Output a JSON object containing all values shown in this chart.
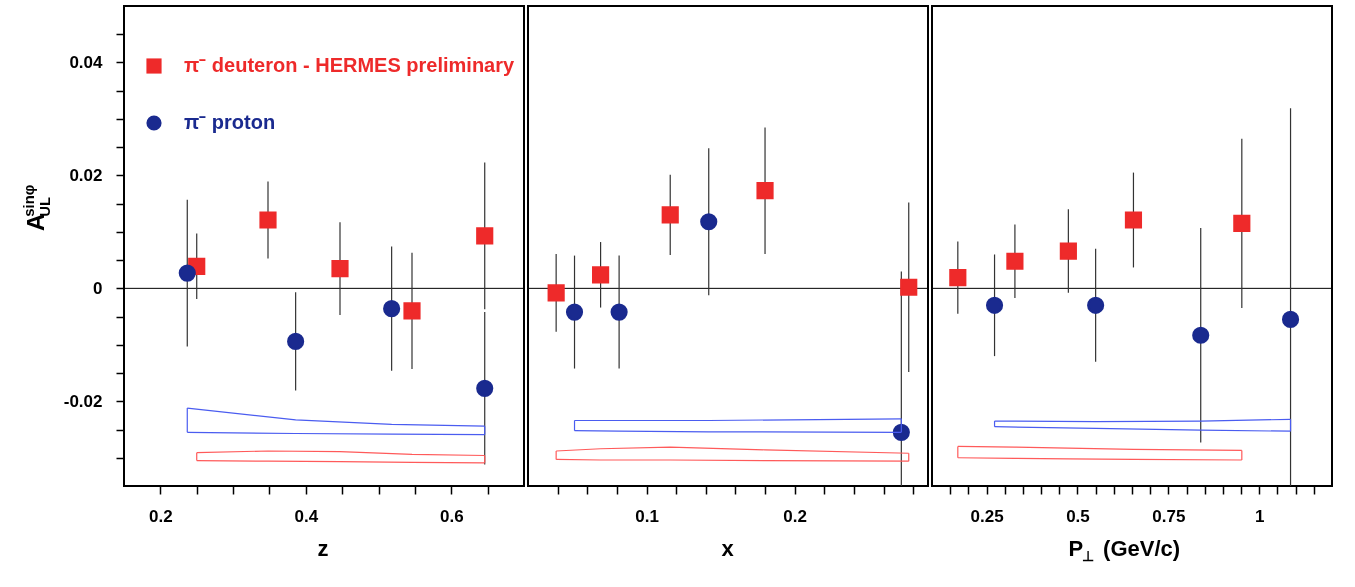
{
  "chart_data": [
    {
      "type": "scatter",
      "xlabel": "z",
      "ylabel": "A$^{sinφ}$$_{UL}$",
      "legend": "top left",
      "xlim": [
        0.15,
        0.7
      ],
      "ylim": [
        -0.035,
        0.05
      ],
      "xticks": [
        0.2,
        {
          "value": 0.25,
          "label": null
        },
        {
          "value": 0.3,
          "label": null
        },
        {
          "value": 0.35,
          "label": null
        },
        0.4,
        {
          "value": 0.45,
          "label": null
        },
        {
          "value": 0.5,
          "label": null
        },
        {
          "value": 0.55,
          "label": null
        },
        0.6,
        {
          "value": 0.65,
          "label": null
        }
      ],
      "yticks": [
        {
          "value": -0.03,
          "label": null
        },
        {
          "value": -0.025,
          "label": null
        },
        -0.02,
        {
          "value": -0.015,
          "label": null
        },
        {
          "value": -0.01,
          "label": null
        },
        {
          "value": -0.005,
          "label": null
        },
        0,
        {
          "value": 0.005,
          "label": null
        },
        {
          "value": 0.01,
          "label": null
        },
        {
          "value": 0.015,
          "label": null
        },
        0.02,
        {
          "value": 0.025,
          "label": null
        },
        {
          "value": 0.03,
          "label": null
        },
        {
          "value": 0.035,
          "label": null
        },
        0.04,
        {
          "value": 0.045,
          "label": null
        }
      ],
      "ref_lines": [
        {
          "axis": "y",
          "value": 0
        }
      ],
      "series": [
        {
          "name": "π⁻ deuteron - HERMES preliminary",
          "marker": "square",
          "color": "#ee2a2a",
          "x": [
            0.25,
            0.348,
            0.447,
            0.546,
            0.646
          ],
          "values": [
            0.0039,
            0.0121,
            0.0035,
            -0.004,
            0.0093
          ],
          "errors": [
            0.0058,
            0.0068,
            0.0082,
            0.0103,
            0.013
          ]
        },
        {
          "name": "π⁻ proton",
          "marker": "circle",
          "color": "#1a2a8f",
          "x": [
            0.237,
            0.386,
            0.518,
            0.646
          ],
          "values": [
            0.0027,
            -0.0094,
            -0.0036,
            -0.0177
          ],
          "errors": [
            0.013,
            0.0087,
            0.011,
            0.0135
          ]
        },
        {
          "type": "line",
          "color": "#4a5cf0",
          "x": [
            0.237,
            0.386,
            0.518,
            0.646
          ],
          "values": [
            -0.0212,
            -0.0233,
            -0.0241,
            -0.0244
          ],
          "errors": [
            [
              -0.0255,
              -0.0212
            ],
            null,
            null,
            [
              -0.0259,
              -0.0244
            ]
          ]
        },
        {
          "type": "line",
          "color": "#4a5cf0",
          "x": [
            0.237,
            0.386,
            0.518,
            0.646
          ],
          "values": [
            -0.0255,
            -0.0257,
            -0.0258,
            -0.0259
          ]
        },
        {
          "type": "line",
          "color": "#ff5a5a",
          "x": [
            0.25,
            0.348,
            0.447,
            0.546,
            0.646
          ],
          "values": [
            -0.0291,
            -0.0288,
            -0.0289,
            -0.0294,
            -0.0296
          ],
          "errors": [
            [
              -0.0305,
              -0.0291
            ],
            null,
            null,
            null,
            [
              -0.0309,
              -0.0296
            ]
          ]
        },
        {
          "type": "line",
          "color": "#ff5a5a",
          "x": [
            0.25,
            0.348,
            0.447,
            0.546,
            0.646
          ],
          "values": [
            -0.0305,
            -0.0306,
            -0.0307,
            -0.0308,
            -0.0309
          ]
        }
      ]
    },
    {
      "type": "scatter",
      "xlabel": "x",
      "tick_labels": "x",
      "xlim": [
        0.02,
        0.29
      ],
      "ylim": [
        -0.035,
        0.05
      ],
      "xticks": [
        {
          "value": 0.04,
          "label": null
        },
        {
          "value": 0.06,
          "label": null
        },
        {
          "value": 0.08,
          "label": null
        },
        0.1,
        {
          "value": 0.12,
          "label": null
        },
        {
          "value": 0.14,
          "label": null
        },
        {
          "value": 0.16,
          "label": null
        },
        {
          "value": 0.18,
          "label": null
        },
        0.2,
        {
          "value": 0.22,
          "label": null
        },
        {
          "value": 0.24,
          "label": null
        },
        {
          "value": 0.26,
          "label": null
        },
        {
          "value": 0.28,
          "label": null
        }
      ],
      "ref_lines": [
        {
          "axis": "y",
          "value": 0
        }
      ],
      "series": [
        {
          "marker": "square",
          "color": "#ee2a2a",
          "x": [
            0.039,
            0.069,
            0.116,
            0.18,
            0.277
          ],
          "values": [
            -0.0008,
            0.0024,
            0.013,
            0.0173,
            0.0002
          ],
          "errors": [
            0.0069,
            0.0058,
            0.0071,
            0.0112,
            0.015
          ]
        },
        {
          "marker": "circle",
          "color": "#1a2a8f",
          "x": [
            0.0514,
            0.0815,
            0.142,
            0.272
          ],
          "values": [
            -0.0042,
            -0.0042,
            0.0118,
            -0.0255
          ],
          "errors": [
            0.01,
            0.01,
            0.013,
            [
              -0.035,
              0.003
            ]
          ]
        },
        {
          "type": "line",
          "color": "#4a5cf0",
          "x": [
            0.0514,
            0.0815,
            0.142,
            0.272
          ],
          "values": [
            -0.0234,
            -0.0234,
            -0.0234,
            -0.0231
          ],
          "errors": [
            [
              -0.0252,
              -0.0234
            ],
            null,
            null,
            [
              -0.0255,
              -0.0231
            ]
          ]
        },
        {
          "type": "line",
          "color": "#4a5cf0",
          "x": [
            0.0514,
            0.0815,
            0.142,
            0.272
          ],
          "values": [
            -0.0252,
            -0.0253,
            -0.0254,
            -0.0255
          ]
        },
        {
          "type": "line",
          "color": "#ff5a5a",
          "x": [
            0.039,
            0.069,
            0.116,
            0.18,
            0.277
          ],
          "values": [
            -0.0288,
            -0.0284,
            -0.0281,
            -0.0286,
            -0.0292
          ],
          "errors": [
            [
              -0.0303,
              -0.0288
            ],
            null,
            null,
            null,
            [
              -0.0306,
              -0.0292
            ]
          ]
        },
        {
          "type": "line",
          "color": "#ff5a5a",
          "x": [
            0.039,
            0.069,
            0.116,
            0.18,
            0.277
          ],
          "values": [
            -0.0303,
            -0.0304,
            -0.0304,
            -0.0305,
            -0.0306
          ]
        }
      ]
    },
    {
      "type": "scatter",
      "xlabel": "P$_{⊥}$ (GeV/c)",
      "tick_labels": "x",
      "xlim": [
        0.1,
        1.2
      ],
      "ylim": [
        -0.035,
        0.05
      ],
      "xticks": [
        {
          "value": 0.15,
          "label": null
        },
        {
          "value": 0.2,
          "label": null
        },
        0.25,
        {
          "value": 0.3,
          "label": null
        },
        {
          "value": 0.35,
          "label": null
        },
        {
          "value": 0.4,
          "label": null
        },
        {
          "value": 0.45,
          "label": null
        },
        0.5,
        {
          "value": 0.55,
          "label": null
        },
        {
          "value": 0.6,
          "label": null
        },
        {
          "value": 0.65,
          "label": null
        },
        {
          "value": 0.7,
          "label": null
        },
        0.75,
        {
          "value": 0.8,
          "label": null
        },
        {
          "value": 0.85,
          "label": null
        },
        {
          "value": 0.9,
          "label": null
        },
        {
          "value": 0.95,
          "label": null
        },
        1,
        {
          "value": 1.05,
          "label": null
        },
        {
          "value": 1.1,
          "label": null
        },
        {
          "value": 1.15,
          "label": null
        }
      ],
      "ref_lines": [
        {
          "axis": "y",
          "value": 0
        }
      ],
      "series": [
        {
          "marker": "square",
          "color": "#ee2a2a",
          "x": [
            0.171,
            0.328,
            0.475,
            0.654,
            0.952
          ],
          "values": [
            0.0019,
            0.0048,
            0.0066,
            0.0121,
            0.0115
          ],
          "errors": [
            0.0064,
            0.0065,
            0.0074,
            0.0084,
            0.015
          ]
        },
        {
          "marker": "circle",
          "color": "#1a2a8f",
          "x": [
            0.272,
            0.55,
            0.839,
            1.086
          ],
          "values": [
            -0.003,
            -0.003,
            -0.0083,
            -0.0055
          ],
          "errors": [
            0.009,
            0.01,
            0.019,
            [
              -0.035,
              0.0319
            ]
          ]
        },
        {
          "type": "line",
          "color": "#4a5cf0",
          "x": [
            0.272,
            0.55,
            0.839,
            1.086
          ],
          "values": [
            -0.0235,
            -0.0236,
            -0.0235,
            -0.0232
          ],
          "errors": [
            [
              -0.0245,
              -0.0235
            ],
            null,
            null,
            [
              -0.0253,
              -0.0232
            ]
          ]
        },
        {
          "type": "line",
          "color": "#4a5cf0",
          "x": [
            0.272,
            0.55,
            0.839,
            1.086
          ],
          "values": [
            -0.0245,
            -0.0248,
            -0.0251,
            -0.0253
          ]
        },
        {
          "type": "line",
          "color": "#ff5a5a",
          "x": [
            0.171,
            0.328,
            0.475,
            0.654,
            0.952
          ],
          "values": [
            -0.028,
            -0.0281,
            -0.0283,
            -0.0285,
            -0.0287
          ],
          "errors": [
            [
              -0.03,
              -0.028
            ],
            null,
            null,
            null,
            [
              -0.0304,
              -0.0287
            ]
          ]
        },
        {
          "type": "line",
          "color": "#ff5a5a",
          "x": [
            0.171,
            0.328,
            0.475,
            0.654,
            0.952
          ],
          "values": [
            -0.03,
            -0.0301,
            -0.0302,
            -0.0303,
            -0.0304
          ]
        }
      ]
    }
  ]
}
